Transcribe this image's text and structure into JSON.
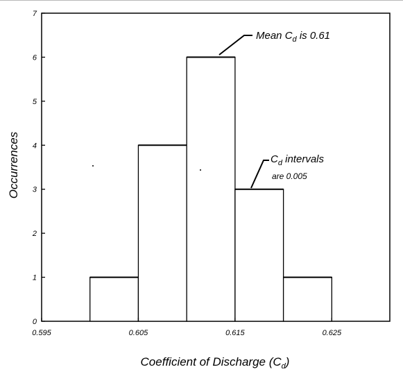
{
  "chart_data": {
    "type": "bar",
    "title": "",
    "xlabel": "Coefficient of Discharge (C",
    "xlabel_sub": "d",
    "xlabel_close": ")",
    "ylabel": "Occurrences",
    "xlim": [
      0.595,
      0.631
    ],
    "ylim": [
      0,
      7
    ],
    "bin_width": 0.005,
    "bars": [
      {
        "left": 0.6,
        "right": 0.605,
        "value": 1
      },
      {
        "left": 0.605,
        "right": 0.61,
        "value": 4
      },
      {
        "left": 0.61,
        "right": 0.615,
        "value": 6
      },
      {
        "left": 0.615,
        "right": 0.62,
        "value": 3
      },
      {
        "left": 0.62,
        "right": 0.625,
        "value": 1
      }
    ],
    "x_ticks": [
      {
        "value": 0.595,
        "label": "0.595"
      },
      {
        "value": 0.605,
        "label": "0.605"
      },
      {
        "value": 0.615,
        "label": "0.615"
      },
      {
        "value": 0.625,
        "label": "0.625"
      }
    ],
    "y_ticks": [
      {
        "value": 0,
        "label": "0"
      },
      {
        "value": 1,
        "label": "1"
      },
      {
        "value": 2,
        "label": "2"
      },
      {
        "value": 3,
        "label": "3"
      },
      {
        "value": 4,
        "label": "4"
      },
      {
        "value": 5,
        "label": "5"
      },
      {
        "value": 6,
        "label": "6"
      },
      {
        "value": 7,
        "label": "7"
      }
    ],
    "grid": false,
    "annotations": {
      "mean": {
        "prefix": "Mean C",
        "sub": "d",
        "suffix": " is 0.61"
      },
      "interval": {
        "line1_prefix": "C",
        "line1_sub": "d",
        "line1_suffix": " intervals",
        "line2": "are 0.005"
      }
    }
  }
}
